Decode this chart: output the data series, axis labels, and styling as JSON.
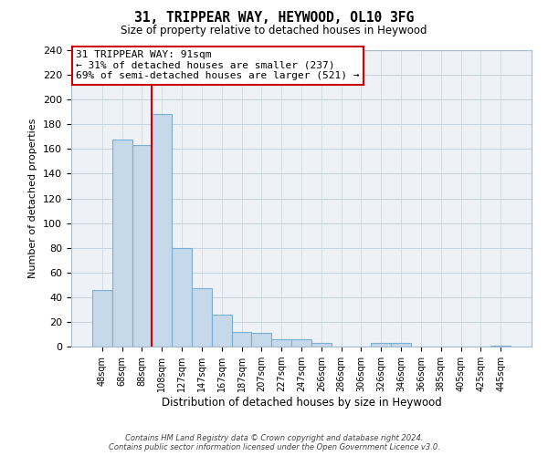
{
  "title": "31, TRIPPEAR WAY, HEYWOOD, OL10 3FG",
  "subtitle": "Size of property relative to detached houses in Heywood",
  "xlabel": "Distribution of detached houses by size in Heywood",
  "ylabel": "Number of detached properties",
  "bar_labels": [
    "48sqm",
    "68sqm",
    "88sqm",
    "108sqm",
    "127sqm",
    "147sqm",
    "167sqm",
    "187sqm",
    "207sqm",
    "227sqm",
    "247sqm",
    "266sqm",
    "286sqm",
    "306sqm",
    "326sqm",
    "346sqm",
    "366sqm",
    "385sqm",
    "405sqm",
    "425sqm",
    "445sqm"
  ],
  "bar_values": [
    46,
    168,
    163,
    188,
    80,
    47,
    26,
    12,
    11,
    6,
    6,
    3,
    0,
    0,
    3,
    3,
    0,
    0,
    0,
    0,
    1
  ],
  "bar_color": "#c5d9ea",
  "bar_edge_color": "#7aafd4",
  "vline_x": 2.5,
  "vline_color": "#cc0000",
  "ylim": [
    0,
    240
  ],
  "yticks": [
    0,
    20,
    40,
    60,
    80,
    100,
    120,
    140,
    160,
    180,
    200,
    220,
    240
  ],
  "annotation_title": "31 TRIPPEAR WAY: 91sqm",
  "annotation_line2": "← 31% of detached houses are smaller (237)",
  "annotation_line3": "69% of semi-detached houses are larger (521) →",
  "annotation_box_color": "#ffffff",
  "annotation_box_edge": "#cc0000",
  "footer_line1": "Contains HM Land Registry data © Crown copyright and database right 2024.",
  "footer_line2": "Contains public sector information licensed under the Open Government Licence v3.0.",
  "bg_color": "#ffffff",
  "plot_bg_color": "#eef2f7",
  "grid_color": "#c8d4e0"
}
